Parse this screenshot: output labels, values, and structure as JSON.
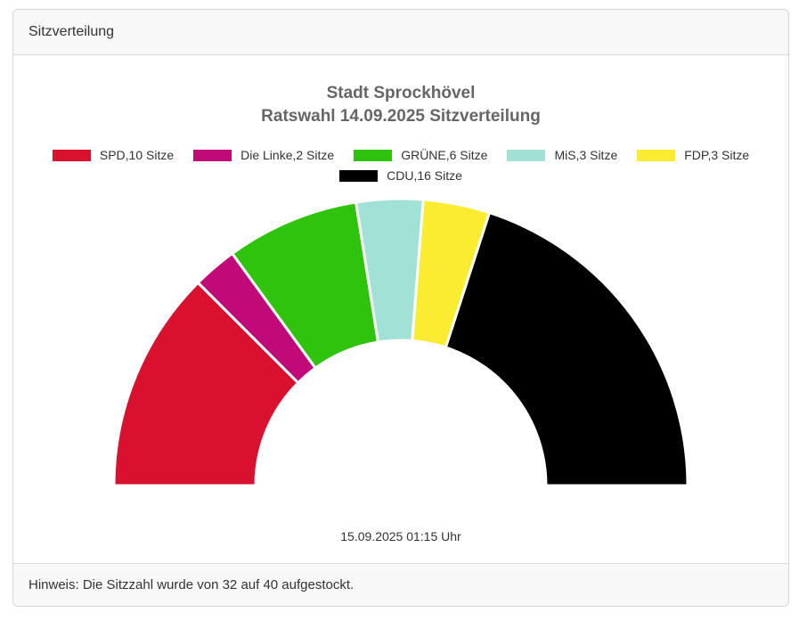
{
  "card": {
    "header_title": "Sitzverteilung",
    "footer_note": "Hinweis: Die Sitzzahl wurde von 32 auf 40 aufgestockt."
  },
  "chart_data": {
    "type": "pie",
    "variant": "half-donut",
    "title": "Stadt Sprockhövel",
    "subtitle": "Ratswahl 14.09.2025 Sitzverteilung",
    "timestamp": "15.09.2025 01:15 Uhr",
    "unit": "Sitze",
    "total_seats": 40,
    "start_angle_deg": 180,
    "end_angle_deg": 0,
    "series": [
      {
        "name": "SPD",
        "seats": 10,
        "label": "SPD,10 Sitze",
        "color": "#d8112f"
      },
      {
        "name": "Die Linke",
        "seats": 2,
        "label": "Die Linke,2 Sitze",
        "color": "#c00a78"
      },
      {
        "name": "GRÜNE",
        "seats": 6,
        "label": "GRÜNE,6 Sitze",
        "color": "#2fc30d"
      },
      {
        "name": "MiS",
        "seats": 3,
        "label": "MiS,3 Sitze",
        "color": "#a2e1d6"
      },
      {
        "name": "FDP",
        "seats": 3,
        "label": "FDP,3 Sitze",
        "color": "#f9ec31"
      },
      {
        "name": "CDU",
        "seats": 16,
        "label": "CDU,16 Sitze",
        "color": "#000000"
      }
    ],
    "legend": {
      "rows": [
        [
          0,
          1,
          2,
          3,
          4
        ],
        [
          5
        ]
      ],
      "position": "top"
    },
    "slice_border_color": "#ffffff",
    "slice_border_width": 3
  }
}
